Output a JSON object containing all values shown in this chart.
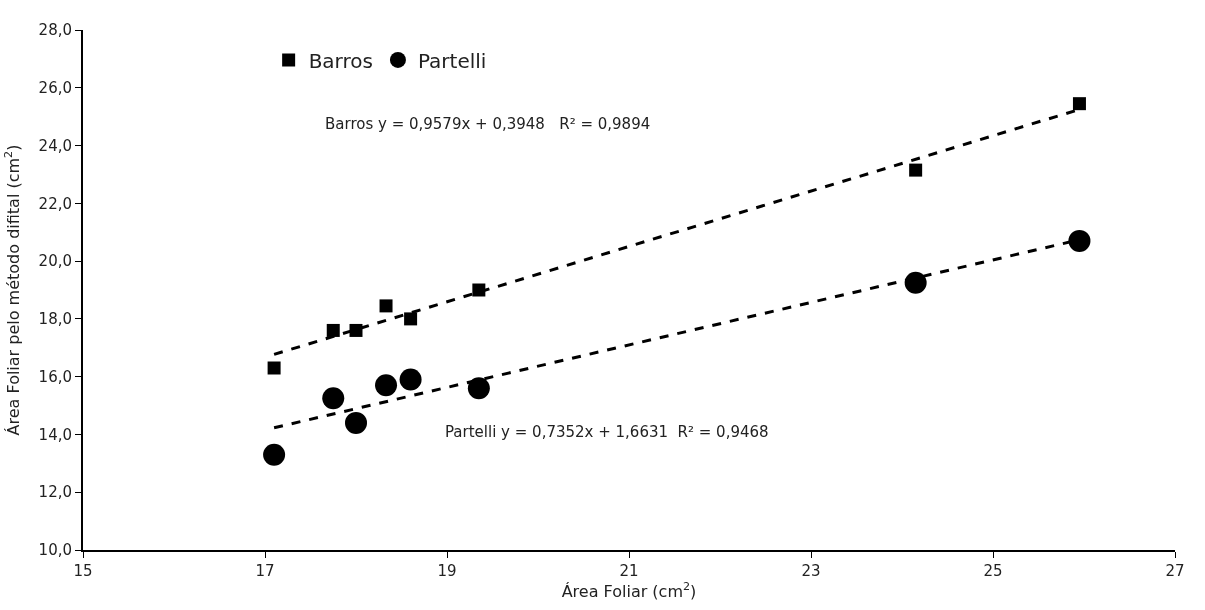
{
  "chart_data": {
    "type": "scatter",
    "xlabel": "Área Foliar (cm$^{2}$)",
    "ylabel": "Área Foliar pelo método difital (cm$^{2}$)",
    "series": [
      {
        "name": "Barros",
        "color": "#000000",
        "marker": "square",
        "x": [
          17.1,
          17.75,
          18.0,
          18.33,
          18.6,
          19.35,
          24.15,
          25.95
        ],
        "values": [
          16.3,
          17.6,
          17.6,
          18.45,
          18.0,
          19.0,
          23.15,
          25.45
        ]
      },
      {
        "name": "Partelli",
        "color": "#000000",
        "marker": "circle",
        "x": [
          17.1,
          17.75,
          18.0,
          18.33,
          18.6,
          19.35,
          24.15,
          25.95
        ],
        "values": [
          13.3,
          15.25,
          14.4,
          15.7,
          15.9,
          15.6,
          19.25,
          20.7
        ]
      },
      {
        "type": "line",
        "color": "#000000",
        "line_style": "dashed",
        "x": [
          17.1,
          25.95
        ],
        "values": [
          16.77,
          25.25
        ]
      },
      {
        "type": "line",
        "color": "#000000",
        "line_style": "dashed",
        "x": [
          17.1,
          25.95
        ],
        "values": [
          14.23,
          20.74
        ]
      }
    ],
    "annotations": [
      "Barros y = 0,9579x + 0,3948   R² = 0,9894",
      "Partelli y = 0,7352x + 1,6631  R² = 0,9468"
    ],
    "xlim": [
      15,
      27
    ],
    "xticks": [
      15,
      17,
      19,
      21,
      23,
      25,
      27
    ],
    "ylim": [
      10,
      28
    ],
    "yticks": [
      {
        "value": 10,
        "label": "10,0"
      },
      {
        "value": 12,
        "label": "12,0"
      },
      {
        "value": 14,
        "label": "14,0"
      },
      {
        "value": 16,
        "label": "16,0"
      },
      {
        "value": 18,
        "label": "18,0"
      },
      {
        "value": 20,
        "label": "20,0"
      },
      {
        "value": 22,
        "label": "22,0"
      },
      {
        "value": 24,
        "label": "24,0"
      },
      {
        "value": 26,
        "label": "26,0"
      },
      {
        "value": 28,
        "label": "28,0"
      }
    ],
    "legend": "top left"
  }
}
